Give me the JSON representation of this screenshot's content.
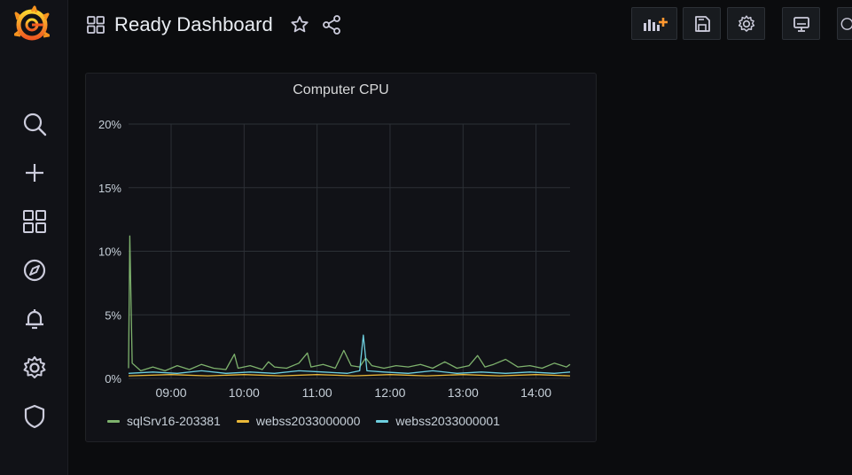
{
  "app": {
    "logo": "grafana-logo"
  },
  "sidebar": {
    "items": [
      {
        "icon": "search-icon"
      },
      {
        "icon": "plus-icon"
      },
      {
        "icon": "dashboards-icon"
      },
      {
        "icon": "explore-icon"
      },
      {
        "icon": "bell-icon"
      },
      {
        "icon": "gear-icon"
      },
      {
        "icon": "shield-icon"
      }
    ]
  },
  "header": {
    "title": "Ready Dashboard",
    "actions": [
      "add-panel-icon",
      "save-icon",
      "settings-icon",
      "tv-mode-icon"
    ]
  },
  "panel": {
    "title": "Computer CPU"
  },
  "colors": {
    "accent": "#ff7800",
    "series1": "#7eb26d",
    "series2": "#eab839",
    "series3": "#6ed0e0",
    "grid": "#2c3036"
  },
  "chart_data": {
    "type": "line",
    "title": "Computer CPU",
    "xlabel": "",
    "ylabel": "",
    "x_ticks": [
      "09:00",
      "10:00",
      "11:00",
      "12:00",
      "13:00",
      "14:00"
    ],
    "y_ticks": [
      "0%",
      "5%",
      "10%",
      "15%",
      "20%"
    ],
    "x_range": [
      "08:25",
      "14:28"
    ],
    "ylim": [
      0,
      20
    ],
    "grid": true,
    "legend": "bottom",
    "series": [
      {
        "name": "sqlSrv16-203381",
        "color": "#7eb26d",
        "points": [
          [
            "08:25",
            0.8
          ],
          [
            "08:26",
            11.2
          ],
          [
            "08:28",
            1.2
          ],
          [
            "08:35",
            0.6
          ],
          [
            "08:45",
            0.9
          ],
          [
            "08:55",
            0.6
          ],
          [
            "09:05",
            1.0
          ],
          [
            "09:15",
            0.7
          ],
          [
            "09:25",
            1.1
          ],
          [
            "09:35",
            0.8
          ],
          [
            "09:45",
            0.7
          ],
          [
            "09:52",
            1.9
          ],
          [
            "09:55",
            0.8
          ],
          [
            "10:05",
            1.0
          ],
          [
            "10:15",
            0.7
          ],
          [
            "10:20",
            1.3
          ],
          [
            "10:25",
            0.9
          ],
          [
            "10:35",
            0.8
          ],
          [
            "10:45",
            1.2
          ],
          [
            "10:52",
            2.0
          ],
          [
            "10:55",
            0.9
          ],
          [
            "11:05",
            1.1
          ],
          [
            "11:15",
            0.8
          ],
          [
            "11:22",
            2.2
          ],
          [
            "11:28",
            1.0
          ],
          [
            "11:35",
            0.9
          ],
          [
            "11:40",
            1.6
          ],
          [
            "11:45",
            1.0
          ],
          [
            "11:55",
            0.8
          ],
          [
            "12:05",
            1.0
          ],
          [
            "12:15",
            0.9
          ],
          [
            "12:25",
            1.1
          ],
          [
            "12:35",
            0.8
          ],
          [
            "12:45",
            1.3
          ],
          [
            "12:55",
            0.8
          ],
          [
            "13:05",
            1.0
          ],
          [
            "13:12",
            1.8
          ],
          [
            "13:18",
            0.9
          ],
          [
            "13:25",
            1.1
          ],
          [
            "13:35",
            1.5
          ],
          [
            "13:45",
            0.9
          ],
          [
            "13:55",
            1.0
          ],
          [
            "14:05",
            0.8
          ],
          [
            "14:15",
            1.2
          ],
          [
            "14:25",
            0.9
          ],
          [
            "14:28",
            1.1
          ]
        ]
      },
      {
        "name": "webss2033000000",
        "color": "#eab839",
        "points": [
          [
            "08:25",
            0.2
          ],
          [
            "09:00",
            0.3
          ],
          [
            "09:30",
            0.2
          ],
          [
            "10:00",
            0.3
          ],
          [
            "10:30",
            0.2
          ],
          [
            "11:00",
            0.3
          ],
          [
            "11:30",
            0.2
          ],
          [
            "12:00",
            0.3
          ],
          [
            "12:30",
            0.2
          ],
          [
            "13:00",
            0.3
          ],
          [
            "13:30",
            0.2
          ],
          [
            "14:00",
            0.3
          ],
          [
            "14:28",
            0.2
          ]
        ]
      },
      {
        "name": "webss2033000001",
        "color": "#6ed0e0",
        "points": [
          [
            "08:25",
            0.4
          ],
          [
            "08:45",
            0.5
          ],
          [
            "09:05",
            0.4
          ],
          [
            "09:25",
            0.6
          ],
          [
            "09:45",
            0.4
          ],
          [
            "10:05",
            0.5
          ],
          [
            "10:25",
            0.4
          ],
          [
            "10:45",
            0.6
          ],
          [
            "11:05",
            0.5
          ],
          [
            "11:25",
            0.4
          ],
          [
            "11:35",
            0.6
          ],
          [
            "11:38",
            3.4
          ],
          [
            "11:41",
            0.6
          ],
          [
            "11:55",
            0.5
          ],
          [
            "12:15",
            0.4
          ],
          [
            "12:35",
            0.6
          ],
          [
            "12:55",
            0.4
          ],
          [
            "13:15",
            0.5
          ],
          [
            "13:35",
            0.4
          ],
          [
            "13:55",
            0.5
          ],
          [
            "14:15",
            0.4
          ],
          [
            "14:28",
            0.5
          ]
        ]
      }
    ]
  }
}
